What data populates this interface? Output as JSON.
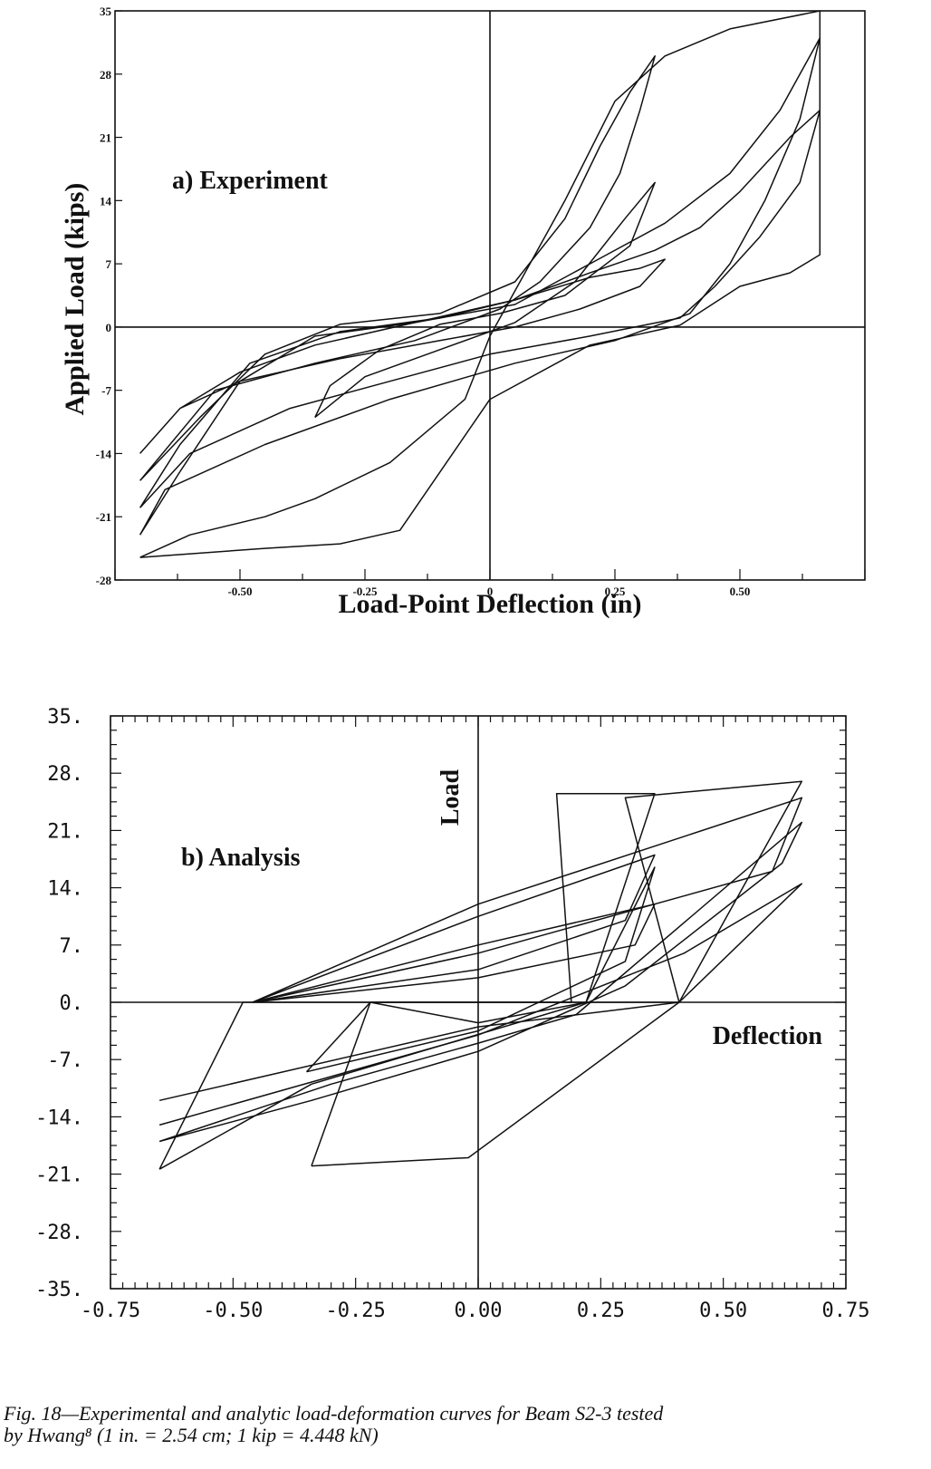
{
  "chart_data": [
    {
      "type": "line",
      "annotation": "a) Experiment",
      "xlabel": "Load-Point Deflection (in)",
      "ylabel": "Applied Load (kips)",
      "xlim": [
        -0.75,
        0.75
      ],
      "ylim": [
        -28,
        35
      ],
      "x_ticks": [
        "-0.50",
        "-0.25",
        "0",
        "0.25",
        "0.50"
      ],
      "x_tick_values": [
        -0.5,
        -0.25,
        0,
        0.25,
        0.5
      ],
      "y_ticks": [
        "35",
        "28",
        "21",
        "14",
        "7",
        "0",
        "-7",
        "-14",
        "-21",
        "-28"
      ],
      "y_tick_values": [
        35,
        28,
        21,
        14,
        7,
        0,
        -7,
        -14,
        -21,
        -28
      ],
      "grid": false,
      "series": [
        {
          "values": [
            [
              -0.35,
              -10
            ],
            [
              -0.32,
              -6.5
            ],
            [
              -0.22,
              -2.5
            ],
            [
              -0.1,
              0.3
            ],
            [
              0.02,
              1.5
            ],
            [
              0.15,
              3.5
            ],
            [
              0.28,
              9
            ],
            [
              0.33,
              16
            ],
            [
              0.27,
              12
            ],
            [
              0.17,
              5
            ],
            [
              0.05,
              0.5
            ],
            [
              -0.1,
              -2.5
            ],
            [
              -0.25,
              -5.5
            ],
            [
              -0.35,
              -10
            ]
          ]
        },
        {
          "values": [
            [
              -0.7,
              -14
            ],
            [
              -0.62,
              -9
            ],
            [
              -0.5,
              -5
            ],
            [
              -0.35,
              -2
            ],
            [
              -0.15,
              0.5
            ],
            [
              0.05,
              3
            ],
            [
              0.2,
              5.5
            ],
            [
              0.3,
              6.5
            ],
            [
              0.35,
              7.5
            ],
            [
              0.3,
              4.5
            ],
            [
              0.18,
              2
            ],
            [
              0.05,
              0
            ],
            [
              -0.1,
              -1.5
            ],
            [
              -0.3,
              -3.5
            ],
            [
              -0.5,
              -6
            ],
            [
              -0.62,
              -9
            ],
            [
              -0.7,
              -14
            ]
          ]
        },
        {
          "values": [
            [
              -0.7,
              -17
            ],
            [
              -0.58,
              -10
            ],
            [
              -0.45,
              -3
            ],
            [
              -0.3,
              0.3
            ],
            [
              -0.1,
              1.5
            ],
            [
              0.05,
              5
            ],
            [
              0.15,
              12
            ],
            [
              0.22,
              20
            ],
            [
              0.28,
              26
            ],
            [
              0.33,
              30
            ],
            [
              0.3,
              24
            ],
            [
              0.26,
              17
            ],
            [
              0.2,
              11
            ],
            [
              0.1,
              5
            ],
            [
              0.02,
              2
            ],
            [
              -0.15,
              -1.5
            ],
            [
              -0.35,
              -4
            ],
            [
              -0.55,
              -7
            ],
            [
              -0.7,
              -17
            ]
          ]
        },
        {
          "values": [
            [
              -0.7,
              -20
            ],
            [
              -0.62,
              -13
            ],
            [
              -0.48,
              -4
            ],
            [
              -0.3,
              -0.5
            ],
            [
              -0.1,
              1
            ],
            [
              0.05,
              3
            ],
            [
              0.2,
              6
            ],
            [
              0.33,
              8.5
            ],
            [
              0.42,
              11
            ],
            [
              0.5,
              15
            ],
            [
              0.6,
              21
            ],
            [
              0.66,
              24
            ],
            [
              0.62,
              16
            ],
            [
              0.54,
              10
            ],
            [
              0.45,
              4.5
            ],
            [
              0.38,
              1
            ],
            [
              0.2,
              -1
            ],
            [
              0.0,
              -3
            ],
            [
              -0.2,
              -6
            ],
            [
              -0.4,
              -9
            ],
            [
              -0.6,
              -14
            ],
            [
              -0.7,
              -20
            ]
          ]
        },
        {
          "values": [
            [
              -0.7,
              -23
            ],
            [
              -0.62,
              -16
            ],
            [
              -0.5,
              -6
            ],
            [
              -0.35,
              -1
            ],
            [
              -0.15,
              0.5
            ],
            [
              0.05,
              2.5
            ],
            [
              0.2,
              7
            ],
            [
              0.35,
              11.5
            ],
            [
              0.48,
              17
            ],
            [
              0.58,
              24
            ],
            [
              0.66,
              32
            ],
            [
              0.62,
              23
            ],
            [
              0.55,
              14
            ],
            [
              0.48,
              7
            ],
            [
              0.4,
              1.5
            ],
            [
              0.25,
              -1.5
            ],
            [
              0.05,
              -4
            ],
            [
              -0.2,
              -8
            ],
            [
              -0.45,
              -13
            ],
            [
              -0.65,
              -18
            ],
            [
              -0.7,
              -23
            ]
          ]
        },
        {
          "values": [
            [
              -0.7,
              -25.5
            ],
            [
              -0.6,
              -23
            ],
            [
              -0.45,
              -21
            ],
            [
              -0.35,
              -19
            ],
            [
              -0.2,
              -15
            ],
            [
              -0.05,
              -8
            ],
            [
              0.0,
              -1
            ],
            [
              0.05,
              4
            ],
            [
              0.15,
              14
            ],
            [
              0.25,
              25
            ],
            [
              0.35,
              30
            ],
            [
              0.48,
              33
            ],
            [
              0.66,
              35
            ],
            [
              0.66,
              8
            ],
            [
              0.6,
              6
            ],
            [
              0.5,
              4.5
            ],
            [
              0.38,
              0.2
            ],
            [
              0.2,
              -2
            ],
            [
              0.0,
              -8
            ],
            [
              -0.18,
              -22.5
            ],
            [
              -0.3,
              -24
            ],
            [
              -0.45,
              -24.5
            ],
            [
              -0.7,
              -25.5
            ]
          ]
        }
      ]
    },
    {
      "type": "line",
      "annotation": "b) Analysis",
      "xlabel": "Deflection",
      "ylabel": "Load",
      "xlim": [
        -0.75,
        0.75
      ],
      "ylim": [
        -35,
        35
      ],
      "x_ticks": [
        "-0.75",
        "-0.50",
        "-0.25",
        "0.00",
        "0.25",
        "0.50",
        "0.75"
      ],
      "x_tick_values": [
        -0.75,
        -0.5,
        -0.25,
        0,
        0.25,
        0.5,
        0.75
      ],
      "y_ticks": [
        "35.",
        "28.",
        "21.",
        "14.",
        "7.",
        "0.",
        "-7.",
        "-14.",
        "-21.",
        "-28.",
        "-35."
      ],
      "y_tick_values": [
        35,
        28,
        21,
        14,
        7,
        0,
        -7,
        -14,
        -21,
        -28,
        -35
      ],
      "grid": false,
      "series": [
        {
          "values": [
            [
              -0.65,
              -20.4
            ],
            [
              -0.48,
              0
            ],
            [
              0.19,
              0
            ],
            [
              0.16,
              25.5
            ],
            [
              0.36,
              25.5
            ],
            [
              0.22,
              0
            ],
            [
              -0.34,
              -10
            ],
            [
              -0.65,
              -20.4
            ]
          ]
        },
        {
          "values": [
            [
              -0.34,
              -20
            ],
            [
              -0.22,
              0
            ],
            [
              0.41,
              0
            ],
            [
              0.3,
              25
            ],
            [
              0.66,
              27
            ],
            [
              0.41,
              0
            ],
            [
              -0.02,
              -19
            ],
            [
              -0.34,
              -20
            ]
          ]
        },
        {
          "values": [
            [
              -0.46,
              0
            ],
            [
              0.0,
              10.5
            ],
            [
              0.36,
              18
            ],
            [
              0.3,
              10
            ],
            [
              0.0,
              4
            ],
            [
              -0.46,
              0
            ]
          ]
        },
        {
          "values": [
            [
              -0.46,
              0
            ],
            [
              0.0,
              12
            ],
            [
              0.66,
              25
            ],
            [
              0.6,
              16
            ],
            [
              0.0,
              6
            ],
            [
              -0.46,
              0
            ]
          ]
        },
        {
          "values": [
            [
              -0.46,
              0
            ],
            [
              0.0,
              7
            ],
            [
              0.36,
              12
            ],
            [
              0.32,
              7
            ],
            [
              0.0,
              3
            ],
            [
              -0.46,
              0
            ]
          ]
        },
        {
          "values": [
            [
              -0.65,
              -12
            ],
            [
              0.0,
              -3
            ],
            [
              0.41,
              0
            ],
            [
              0.66,
              14.5
            ],
            [
              0.42,
              6
            ],
            [
              0.0,
              -4
            ],
            [
              -0.65,
              -15
            ]
          ]
        },
        {
          "values": [
            [
              -0.65,
              -17
            ],
            [
              -0.3,
              -10
            ],
            [
              0.0,
              -5
            ],
            [
              0.2,
              -1.5
            ],
            [
              0.66,
              22
            ],
            [
              0.62,
              17
            ],
            [
              0.3,
              2
            ],
            [
              0.0,
              -6
            ],
            [
              -0.34,
              -12
            ],
            [
              -0.65,
              -17
            ]
          ]
        },
        {
          "values": [
            [
              -0.35,
              -8.5
            ],
            [
              -0.22,
              0
            ],
            [
              0.0,
              -2.5
            ],
            [
              0.22,
              0
            ],
            [
              0.36,
              16.5
            ],
            [
              0.3,
              5
            ],
            [
              0.0,
              -3.5
            ],
            [
              -0.35,
              -8.5
            ]
          ]
        }
      ]
    }
  ],
  "caption": "Fig. 18—Experimental and analytic load-deformation curves for Beam S2-3 tested\nby Hwang⁸ (1 in. = 2.54 cm; 1 kip = 4.448 kN)"
}
